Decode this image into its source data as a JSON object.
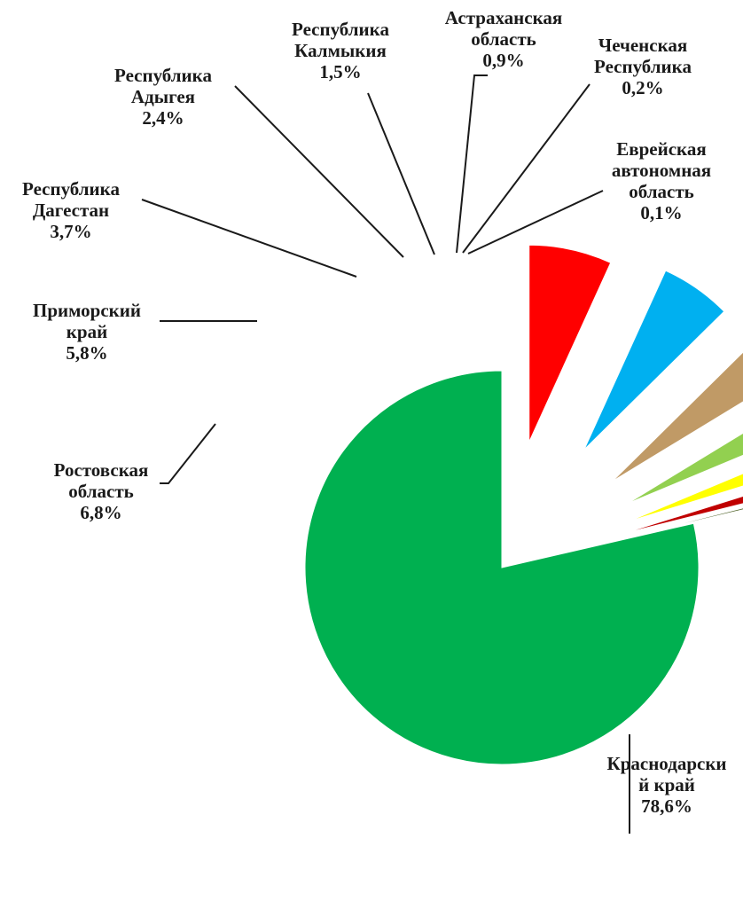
{
  "chart_data": {
    "type": "pie",
    "title": "",
    "slices": [
      {
        "label_lines": [
          "Краснодарски",
          "й край"
        ],
        "value_text": "78,6%",
        "value": 78.6,
        "color": "#00b050"
      },
      {
        "label_lines": [
          "Ростовская",
          "область"
        ],
        "value_text": "6,8%",
        "value": 6.8,
        "color": "#ff0000"
      },
      {
        "label_lines": [
          "Приморский",
          "край"
        ],
        "value_text": "5,8%",
        "value": 5.8,
        "color": "#00b0f0"
      },
      {
        "label_lines": [
          "Республика",
          "Дагестан"
        ],
        "value_text": "3,7%",
        "value": 3.7,
        "color": "#c09a66"
      },
      {
        "label_lines": [
          "Республика",
          "Адыгея"
        ],
        "value_text": "2,4%",
        "value": 2.4,
        "color": "#92d050"
      },
      {
        "label_lines": [
          "Республика",
          "Калмыкия"
        ],
        "value_text": "1,5%",
        "value": 1.5,
        "color": "#ffff00"
      },
      {
        "label_lines": [
          "Астраханская",
          "область"
        ],
        "value_text": "0,9%",
        "value": 0.9,
        "color": "#c00000"
      },
      {
        "label_lines": [
          "Чеченская",
          "Республика"
        ],
        "value_text": "0,2%",
        "value": 0.2,
        "color": "#4f6228"
      },
      {
        "label_lines": [
          "Еврейская",
          "автономная",
          "область"
        ],
        "value_text": "0,1%",
        "value": 0.1,
        "color": "#1f3864"
      }
    ]
  }
}
